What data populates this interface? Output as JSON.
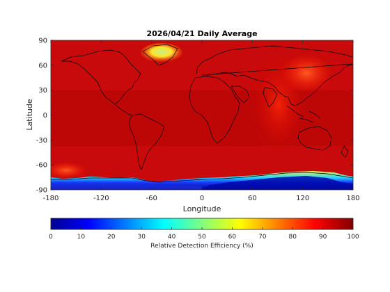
{
  "chart_data": {
    "type": "heatmap",
    "title": "2026/04/21 Daily Average",
    "xlabel": "Longitude",
    "ylabel": "Latitude",
    "xlim": [
      -180,
      180
    ],
    "ylim": [
      -90,
      90
    ],
    "xticks": [
      -180,
      -120,
      -60,
      0,
      60,
      120,
      180
    ],
    "yticks": [
      90,
      60,
      30,
      0,
      -30,
      -60,
      -90
    ],
    "colormap": "jet",
    "colorbar": {
      "label": "Relative Detection Efficiency (%)",
      "range": [
        0,
        100
      ],
      "ticks": [
        0,
        10,
        20,
        30,
        40,
        50,
        60,
        70,
        80,
        90,
        100
      ],
      "orientation": "horizontal",
      "position": "bottom"
    },
    "background_value": 97,
    "regions": [
      {
        "name": "Greenland",
        "lon": [
          -60,
          -20
        ],
        "lat": [
          62,
          84
        ],
        "value": 68
      },
      {
        "name": "Antarctica East",
        "lon": [
          60,
          180
        ],
        "lat": [
          -90,
          -68
        ],
        "value": 12
      },
      {
        "name": "Antarctica West",
        "lon": [
          -180,
          60
        ],
        "lat": [
          -90,
          -78
        ],
        "value": 20
      },
      {
        "name": "Southern Ocean ice edge",
        "lon": [
          -180,
          180
        ],
        "lat": [
          -78,
          -62
        ],
        "value": 88
      },
      {
        "name": "East Asia",
        "lon": [
          110,
          150
        ],
        "lat": [
          30,
          60
        ],
        "value": 87
      }
    ]
  }
}
